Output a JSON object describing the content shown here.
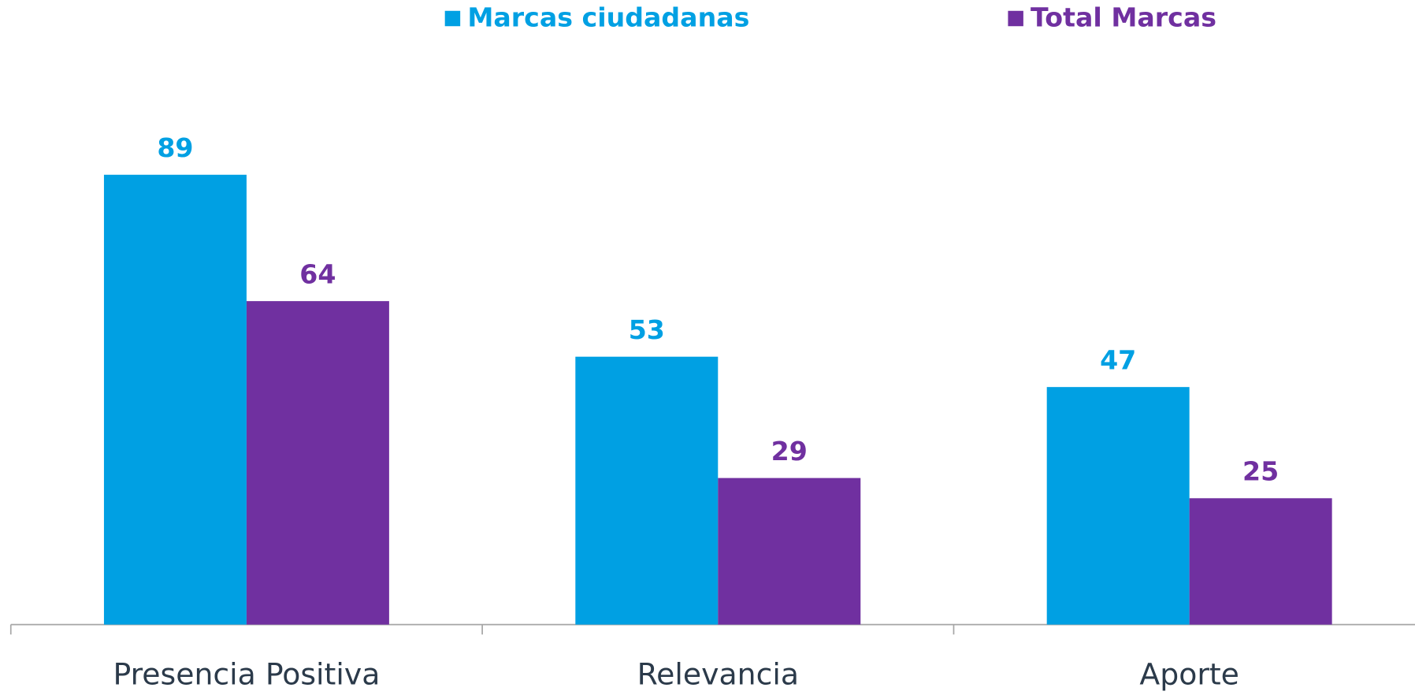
{
  "chart_data": {
    "type": "bar",
    "categories": [
      "Presencia Positiva",
      "Relevancia",
      "Aporte"
    ],
    "series": [
      {
        "name": "Marcas ciudadanas",
        "color": "#00a0e3",
        "values": [
          89,
          53,
          47
        ]
      },
      {
        "name": "Total Marcas",
        "color": "#7030a0",
        "values": [
          64,
          29,
          25
        ]
      }
    ],
    "ylim": [
      0,
      100
    ]
  }
}
